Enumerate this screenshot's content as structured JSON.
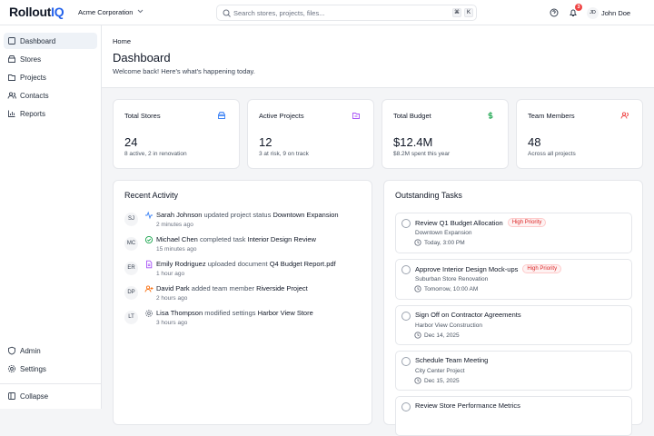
{
  "header": {
    "brand": "Rollout",
    "brand_accent": "IQ",
    "org": "Acme Corporation",
    "search_placeholder": "Search stores, projects, files...",
    "shortcut": [
      "⌘",
      "K"
    ],
    "notification_count": "3",
    "user_initials": "JD",
    "user_name": "John Doe"
  },
  "sidebar": {
    "nav": [
      "Dashboard",
      "Stores",
      "Projects",
      "Contacts",
      "Reports"
    ],
    "bottom": [
      "Admin",
      "Settings"
    ],
    "collapse": "Collapse"
  },
  "page": {
    "breadcrumb": "Home",
    "title": "Dashboard",
    "welcome": "Welcome back! Here's what's happening today."
  },
  "stats": [
    {
      "label": "Total Stores",
      "value": "24",
      "note": "8 active, 2 in renovation"
    },
    {
      "label": "Active Projects",
      "value": "12",
      "note": "3 at risk, 9 on track"
    },
    {
      "label": "Total Budget",
      "value": "$12.4M",
      "note": "$8.2M spent this year"
    },
    {
      "label": "Team Members",
      "value": "48",
      "note": "Across all projects"
    }
  ],
  "activity": {
    "title": "Recent Activity",
    "items": [
      {
        "initials": "SJ",
        "user": "Sarah Johnson",
        "action": "updated project status",
        "target": "Downtown Expansion",
        "time": "2 minutes ago"
      },
      {
        "initials": "MC",
        "user": "Michael Chen",
        "action": "completed task",
        "target": "Interior Design Review",
        "time": "15 minutes ago"
      },
      {
        "initials": "ER",
        "user": "Emily Rodriguez",
        "action": "uploaded document",
        "target": "Q4 Budget Report.pdf",
        "time": "1 hour ago"
      },
      {
        "initials": "DP",
        "user": "David Park",
        "action": "added team member",
        "target": "Riverside Project",
        "time": "2 hours ago"
      },
      {
        "initials": "LT",
        "user": "Lisa Thompson",
        "action": "modified settings",
        "target": "Harbor View Store",
        "time": "3 hours ago"
      }
    ]
  },
  "tasks": {
    "title": "Outstanding Tasks",
    "items": [
      {
        "title": "Review Q1 Budget Allocation",
        "priority": "High Priority",
        "project": "Downtown Expansion",
        "due": "Today, 3:00 PM"
      },
      {
        "title": "Approve Interior Design Mock-ups",
        "priority": "High Priority",
        "project": "Suburban Store Renovation",
        "due": "Tomorrow, 10:00 AM"
      },
      {
        "title": "Sign Off on Contractor Agreements",
        "project": "Harbor View Construction",
        "due": "Dec 14, 2025"
      },
      {
        "title": "Schedule Team Meeting",
        "project": "City Center Project",
        "due": "Dec 15, 2025"
      },
      {
        "title": "Review Store Performance Metrics"
      }
    ]
  }
}
